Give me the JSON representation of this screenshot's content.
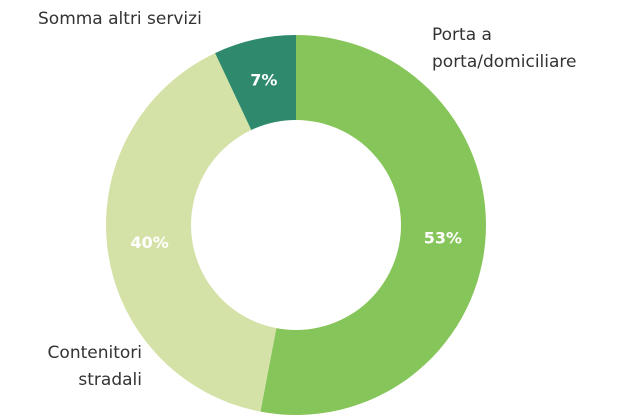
{
  "chart_data": {
    "type": "donut",
    "categories": [
      "Porta a porta/domiciliare",
      "Contenitori stradali",
      "Somma altri servizi"
    ],
    "values": [
      53,
      40,
      7
    ],
    "value_labels": [
      "53%",
      "40%",
      "7%"
    ],
    "colors": [
      "#86c55a",
      "#d4e2a7",
      "#2f8a6d"
    ]
  }
}
